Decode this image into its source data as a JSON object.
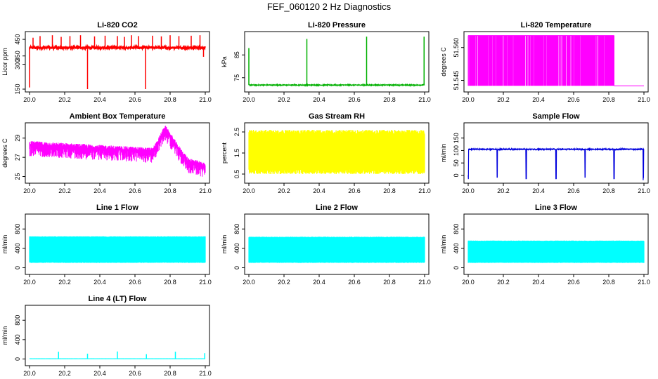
{
  "page": {
    "title": "FEF_060120  2 Hz Diagnostics"
  },
  "chart_data": [
    {
      "id": "co2",
      "type": "line",
      "title": "Li-820 CO2",
      "xlabel": "",
      "ylabel": "Licor ppm",
      "color": "#ff0000",
      "xlim": [
        20.0,
        21.0
      ],
      "ylim": [
        150,
        480
      ],
      "xticks": [
        "20.0",
        "20.2",
        "20.4",
        "20.6",
        "20.8",
        "21.0"
      ],
      "xtick_values": [
        20.0,
        20.2,
        20.4,
        20.6,
        20.8,
        21.0
      ],
      "yticks": [
        "150",
        "300",
        "350",
        "450"
      ],
      "ytick_values": [
        150,
        300,
        350,
        450
      ],
      "series": [
        {
          "name": "CO2",
          "pattern": "noise",
          "base": 400,
          "amp": 7,
          "spikes": [
            [
              20.0,
              160
            ],
            [
              20.02,
              460
            ],
            [
              20.06,
              470
            ],
            [
              20.13,
              475
            ],
            [
              20.18,
              465
            ],
            [
              20.23,
              470
            ],
            [
              20.29,
              475
            ],
            [
              20.33,
              140
            ],
            [
              20.37,
              468
            ],
            [
              20.43,
              472
            ],
            [
              20.5,
              470
            ],
            [
              20.54,
              465
            ],
            [
              20.58,
              475
            ],
            [
              20.62,
              470
            ],
            [
              20.66,
              140
            ],
            [
              20.7,
              472
            ],
            [
              20.75,
              468
            ],
            [
              20.8,
              475
            ],
            [
              20.85,
              470
            ],
            [
              20.92,
              472
            ],
            [
              20.97,
              475
            ],
            [
              20.99,
              345
            ]
          ]
        }
      ]
    },
    {
      "id": "pressure",
      "type": "line",
      "title": "Li-820 Pressure",
      "xlabel": "",
      "ylabel": "kPa",
      "color": "#00b000",
      "xlim": [
        20.0,
        21.0
      ],
      "ylim": [
        70,
        94
      ],
      "xticks": [
        "20.0",
        "20.2",
        "20.4",
        "20.6",
        "20.8",
        "21.0"
      ],
      "xtick_values": [
        20.0,
        20.2,
        20.4,
        20.6,
        20.8,
        21.0
      ],
      "yticks": [
        "75",
        "85"
      ],
      "ytick_values": [
        75,
        85
      ],
      "series": [
        {
          "name": "Pressure",
          "pattern": "flat",
          "base": 71.8,
          "amp": 0.2,
          "spikes": [
            [
              20.0,
              88
            ],
            [
              20.33,
              92
            ],
            [
              20.67,
              93
            ],
            [
              20.997,
              93
            ]
          ]
        }
      ]
    },
    {
      "id": "temperature",
      "type": "line",
      "title": "Li-820 Temperature",
      "xlabel": "",
      "ylabel": "degrees C",
      "color": "#ff00ff",
      "xlim": [
        20.0,
        21.0
      ],
      "ylim": [
        51.541,
        51.566
      ],
      "xticks": [
        "20.0",
        "20.2",
        "20.4",
        "20.6",
        "20.8",
        "21.0"
      ],
      "xtick_values": [
        20.0,
        20.2,
        20.4,
        20.6,
        20.8,
        21.0
      ],
      "yticks": [
        "51.545",
        "51.560"
      ],
      "ytick_values": [
        51.545,
        51.56
      ],
      "series": [
        {
          "name": "Temperature",
          "pattern": "toggle",
          "low": 51.5425,
          "high": 51.5655,
          "toggle_end": 20.83
        }
      ]
    },
    {
      "id": "ambient",
      "type": "line",
      "title": "Ambient Box Temperature",
      "xlabel": "",
      "ylabel": "degrees C",
      "color": "#ff00ff",
      "xlim": [
        20.0,
        21.0
      ],
      "ylim": [
        24.6,
        30.3
      ],
      "xticks": [
        "20.0",
        "20.2",
        "20.4",
        "20.6",
        "20.8",
        "21.0"
      ],
      "xtick_values": [
        20.0,
        20.2,
        20.4,
        20.6,
        20.8,
        21.0
      ],
      "yticks": [
        "25",
        "27",
        "29"
      ],
      "ytick_values": [
        25,
        27,
        29
      ],
      "series": [
        {
          "name": "Box temperature",
          "pattern": "ambient",
          "points": [
            [
              20.0,
              28.3
            ],
            [
              20.3,
              28.0
            ],
            [
              20.6,
              27.7
            ],
            [
              20.7,
              27.6
            ],
            [
              20.73,
              28.5
            ],
            [
              20.77,
              30.0
            ],
            [
              20.8,
              29.2
            ],
            [
              20.85,
              27.8
            ],
            [
              20.9,
              26.6
            ],
            [
              21.0,
              26.0
            ]
          ],
          "dip": 1.2
        }
      ]
    },
    {
      "id": "rh",
      "type": "line",
      "title": "Gas Stream RH",
      "xlabel": "",
      "ylabel": "percent",
      "color": "#ffff00",
      "xlim": [
        20.0,
        21.0
      ],
      "ylim": [
        0.2,
        2.8
      ],
      "xticks": [
        "20.0",
        "20.2",
        "20.4",
        "20.6",
        "20.8",
        "21.0"
      ],
      "xtick_values": [
        20.0,
        20.2,
        20.4,
        20.6,
        20.8,
        21.0
      ],
      "yticks": [
        "0.5",
        "1.5",
        "2.5"
      ],
      "ytick_values": [
        0.5,
        1.5,
        2.5
      ],
      "series": [
        {
          "name": "RH",
          "pattern": "band",
          "low": 0.5,
          "high": 2.6,
          "jitter": 0.25
        }
      ]
    },
    {
      "id": "sample",
      "type": "line",
      "title": "Sample Flow",
      "xlabel": "",
      "ylabel": "ml/min",
      "color": "#0000dd",
      "xlim": [
        20.0,
        21.0
      ],
      "ylim": [
        -20,
        200
      ],
      "xticks": [
        "20.0",
        "20.2",
        "20.4",
        "20.6",
        "20.8",
        "21.0"
      ],
      "xtick_values": [
        20.0,
        20.2,
        20.4,
        20.6,
        20.8,
        21.0
      ],
      "yticks": [
        "0",
        "50",
        "100",
        "150"
      ],
      "ytick_values": [
        0,
        50,
        100,
        150
      ],
      "series": [
        {
          "name": "Sample flow",
          "pattern": "flat",
          "base": 105,
          "amp": 2,
          "dips": [
            20.0,
            20.165,
            20.33,
            20.5,
            20.665,
            20.83,
            20.997
          ]
        }
      ]
    },
    {
      "id": "line1",
      "type": "area",
      "title": "Line 1 Flow",
      "xlabel": "",
      "ylabel": "ml/min",
      "color": "#00ffff",
      "xlim": [
        20.0,
        21.0
      ],
      "ylim": [
        -80,
        1050
      ],
      "xticks": [
        "20.0",
        "20.2",
        "20.4",
        "20.6",
        "20.8",
        "21.0"
      ],
      "xtick_values": [
        20.0,
        20.2,
        20.4,
        20.6,
        20.8,
        21.0
      ],
      "yticks": [
        "0",
        "400",
        "800"
      ],
      "ytick_values": [
        0,
        400,
        800
      ],
      "series": [
        {
          "name": "Line 1",
          "pattern": "band",
          "low": 100,
          "high": 650,
          "jitter": 15,
          "gaps": [
            20.165,
            20.33,
            20.5,
            20.665,
            20.83
          ]
        }
      ]
    },
    {
      "id": "line2",
      "type": "area",
      "title": "Line 2 Flow",
      "xlabel": "",
      "ylabel": "ml/min",
      "color": "#00ffff",
      "xlim": [
        20.0,
        21.0
      ],
      "ylim": [
        -80,
        1050
      ],
      "xticks": [
        "20.0",
        "20.2",
        "20.4",
        "20.6",
        "20.8",
        "21.0"
      ],
      "xtick_values": [
        20.0,
        20.2,
        20.4,
        20.6,
        20.8,
        21.0
      ],
      "yticks": [
        "0",
        "400",
        "800"
      ],
      "ytick_values": [
        0,
        400,
        800
      ],
      "series": [
        {
          "name": "Line 2",
          "pattern": "band",
          "low": 100,
          "high": 640,
          "jitter": 15,
          "gaps": [
            20.165,
            20.23,
            20.33,
            20.5,
            20.6,
            20.665,
            20.73,
            20.79,
            20.83,
            20.9
          ]
        }
      ]
    },
    {
      "id": "line3",
      "type": "area",
      "title": "Line 3 Flow",
      "xlabel": "",
      "ylabel": "ml/min",
      "color": "#00ffff",
      "xlim": [
        20.0,
        21.0
      ],
      "ylim": [
        -80,
        1050
      ],
      "xticks": [
        "20.0",
        "20.2",
        "20.4",
        "20.6",
        "20.8",
        "21.0"
      ],
      "xtick_values": [
        20.0,
        20.2,
        20.4,
        20.6,
        20.8,
        21.0
      ],
      "yticks": [
        "0",
        "400",
        "800"
      ],
      "ytick_values": [
        0,
        400,
        800
      ],
      "series": [
        {
          "name": "Line 3",
          "pattern": "band",
          "low": 100,
          "high": 560,
          "jitter": 10,
          "gaps": [
            20.06,
            20.1,
            20.165,
            20.23,
            20.3,
            20.33,
            20.4,
            20.5,
            20.56,
            20.6,
            20.665,
            20.73,
            20.79,
            20.83,
            20.9,
            20.96
          ]
        }
      ]
    },
    {
      "id": "line4",
      "type": "line",
      "title": "Line 4 (LT) Flow",
      "xlabel": "",
      "ylabel": "ml/min",
      "color": "#00ffff",
      "xlim": [
        20.0,
        21.0
      ],
      "ylim": [
        -80,
        1050
      ],
      "xticks": [
        "20.0",
        "20.2",
        "20.4",
        "20.6",
        "20.8",
        "21.0"
      ],
      "xtick_values": [
        20.0,
        20.2,
        20.4,
        20.6,
        20.8,
        21.0
      ],
      "yticks": [
        "0",
        "400",
        "800"
      ],
      "ytick_values": [
        0,
        400,
        800
      ],
      "series": [
        {
          "name": "Line 4",
          "pattern": "flat",
          "base": 5,
          "amp": 1,
          "spikes": [
            [
              20.165,
              150
            ],
            [
              20.33,
              110
            ],
            [
              20.5,
              155
            ],
            [
              20.665,
              100
            ],
            [
              20.83,
              150
            ],
            [
              20.997,
              120
            ]
          ]
        }
      ]
    }
  ]
}
